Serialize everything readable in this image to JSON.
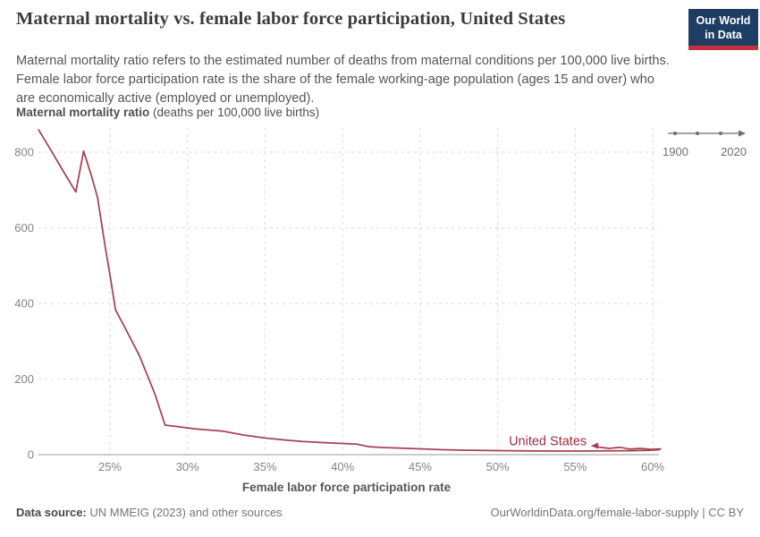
{
  "header": {
    "title": "Maternal mortality vs. female labor force participation, United States",
    "subtitle": "Maternal mortality ratio refers to the estimated number of deaths from maternal conditions per 100,000 live births. Female labor force participation rate is the share of the female working-age population (ages 15 and over) who are economically active (employed or unemployed).",
    "logo": {
      "line1": "Our World",
      "line2": "in Data"
    }
  },
  "timeline": {
    "start_year": "1900",
    "end_year": "2020"
  },
  "chart_data": {
    "type": "line",
    "subtype": "connected-scatter",
    "title": "Maternal mortality vs. female labor force participation, United States",
    "unit_label_bold": "Maternal mortality ratio",
    "unit_label_rest": " (deaths per 100,000 live births)",
    "xlabel": "Female labor force participation rate",
    "ylabel": "Maternal mortality ratio (deaths per 100,000 live births)",
    "entity_label": "United States",
    "x_tick_values": [
      25,
      30,
      35,
      40,
      45,
      50,
      55,
      60
    ],
    "x_tick_labels": [
      "25%",
      "30%",
      "35%",
      "40%",
      "45%",
      "50%",
      "55%",
      "60%"
    ],
    "y_tick_values": [
      0,
      200,
      400,
      600,
      800
    ],
    "y_tick_labels": [
      "0",
      "200",
      "400",
      "600",
      "800"
    ],
    "xlim": [
      20.1,
      60.4
    ],
    "ylim": [
      0,
      864
    ],
    "grid": "dashed-both-axes",
    "legend_position": "end-of-line-label",
    "time_range_shown": "1900-2020",
    "points_x_lfp_pct_y_mmr": [
      [
        20.4,
        859
      ],
      [
        21.3,
        798
      ],
      [
        22.1,
        742
      ],
      [
        22.8,
        695
      ],
      [
        23.3,
        803
      ],
      [
        23.8,
        738
      ],
      [
        24.2,
        680
      ],
      [
        24.7,
        548
      ],
      [
        25.05,
        462
      ],
      [
        25.36,
        383
      ],
      [
        25.9,
        341
      ],
      [
        26.9,
        262
      ],
      [
        27.9,
        160
      ],
      [
        28.55,
        78
      ],
      [
        29.4,
        74
      ],
      [
        30.5,
        68
      ],
      [
        32.3,
        62
      ],
      [
        33.6,
        52
      ],
      [
        35.0,
        44
      ],
      [
        36.2,
        39
      ],
      [
        37.4,
        35
      ],
      [
        38.7,
        32
      ],
      [
        40.0,
        29.5
      ],
      [
        40.9,
        28
      ],
      [
        41.7,
        21
      ],
      [
        42.6,
        19
      ],
      [
        43.6,
        17.5
      ],
      [
        45.0,
        15.4
      ],
      [
        46.5,
        13
      ],
      [
        47.8,
        11.8
      ],
      [
        50.0,
        10.7
      ],
      [
        52.4,
        9.6
      ],
      [
        55.0,
        9.4
      ],
      [
        57.0,
        9.9
      ],
      [
        58.5,
        10.5
      ],
      [
        59.8,
        11.5
      ],
      [
        60.4,
        13
      ],
      [
        60.5,
        15.5
      ],
      [
        59.9,
        14
      ],
      [
        59.2,
        16.5
      ],
      [
        58.5,
        15
      ],
      [
        57.9,
        19.5
      ],
      [
        57.2,
        16.5
      ],
      [
        56.6,
        19.5
      ],
      [
        56.2,
        23.5
      ]
    ],
    "colors": {
      "line": "#a64153",
      "entity_label": "#9c2c3f",
      "gridline": "#dadada",
      "zero_axis": "#9a9a9a",
      "tick_text": "#848484"
    }
  },
  "footer": {
    "data_source_label": "Data source:",
    "data_source_value": " UN MMEIG (2023) and other sources",
    "attribution": "OurWorldinData.org/female-labor-supply | CC BY"
  },
  "colors": {
    "logo_background": "#1d3d63",
    "logo_bar": "#c5313d",
    "series": "#a64153"
  }
}
